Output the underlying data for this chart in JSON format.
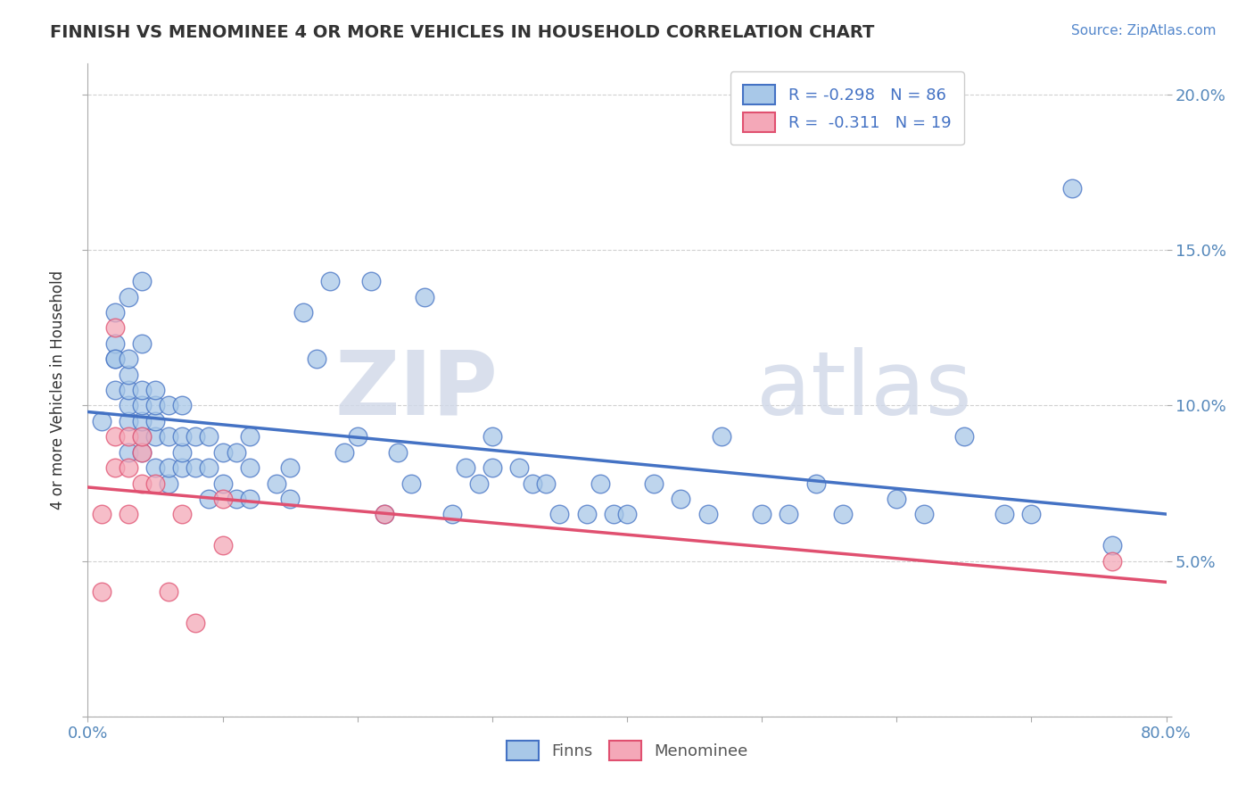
{
  "title": "FINNISH VS MENOMINEE 4 OR MORE VEHICLES IN HOUSEHOLD CORRELATION CHART",
  "source": "Source: ZipAtlas.com",
  "ylabel": "4 or more Vehicles in Household",
  "xlim": [
    0.0,
    0.8
  ],
  "ylim": [
    0.0,
    0.21
  ],
  "x_ticks": [
    0.0,
    0.1,
    0.2,
    0.3,
    0.4,
    0.5,
    0.6,
    0.7,
    0.8
  ],
  "y_ticks": [
    0.0,
    0.05,
    0.1,
    0.15,
    0.2
  ],
  "y_tick_labels_right": [
    "",
    "5.0%",
    "10.0%",
    "15.0%",
    "20.0%"
  ],
  "legend_label1": "R = -0.298   N = 86",
  "legend_label2": "R =  -0.311   N = 19",
  "legend_label_bottom1": "Finns",
  "legend_label_bottom2": "Menominee",
  "color_finns": "#a8c8e8",
  "color_menominee": "#f4a8b8",
  "color_line_finns": "#4472c4",
  "color_line_menominee": "#e05070",
  "watermark_zip": "ZIP",
  "watermark_atlas": "atlas",
  "finns_x": [
    0.01,
    0.02,
    0.02,
    0.02,
    0.02,
    0.02,
    0.03,
    0.03,
    0.03,
    0.03,
    0.03,
    0.03,
    0.03,
    0.04,
    0.04,
    0.04,
    0.04,
    0.04,
    0.04,
    0.04,
    0.05,
    0.05,
    0.05,
    0.05,
    0.05,
    0.06,
    0.06,
    0.06,
    0.06,
    0.07,
    0.07,
    0.07,
    0.07,
    0.08,
    0.08,
    0.09,
    0.09,
    0.09,
    0.1,
    0.1,
    0.11,
    0.11,
    0.12,
    0.12,
    0.12,
    0.14,
    0.15,
    0.15,
    0.16,
    0.17,
    0.18,
    0.19,
    0.2,
    0.21,
    0.22,
    0.23,
    0.24,
    0.25,
    0.27,
    0.28,
    0.29,
    0.3,
    0.3,
    0.32,
    0.33,
    0.34,
    0.35,
    0.37,
    0.38,
    0.39,
    0.4,
    0.42,
    0.44,
    0.46,
    0.47,
    0.5,
    0.52,
    0.54,
    0.56,
    0.6,
    0.62,
    0.65,
    0.68,
    0.7,
    0.73,
    0.76
  ],
  "finns_y": [
    0.095,
    0.105,
    0.115,
    0.12,
    0.115,
    0.13,
    0.085,
    0.095,
    0.1,
    0.105,
    0.11,
    0.115,
    0.135,
    0.085,
    0.09,
    0.095,
    0.1,
    0.105,
    0.12,
    0.14,
    0.08,
    0.09,
    0.095,
    0.1,
    0.105,
    0.075,
    0.08,
    0.09,
    0.1,
    0.08,
    0.085,
    0.09,
    0.1,
    0.08,
    0.09,
    0.07,
    0.08,
    0.09,
    0.075,
    0.085,
    0.07,
    0.085,
    0.07,
    0.08,
    0.09,
    0.075,
    0.07,
    0.08,
    0.13,
    0.115,
    0.14,
    0.085,
    0.09,
    0.14,
    0.065,
    0.085,
    0.075,
    0.135,
    0.065,
    0.08,
    0.075,
    0.08,
    0.09,
    0.08,
    0.075,
    0.075,
    0.065,
    0.065,
    0.075,
    0.065,
    0.065,
    0.075,
    0.07,
    0.065,
    0.09,
    0.065,
    0.065,
    0.075,
    0.065,
    0.07,
    0.065,
    0.09,
    0.065,
    0.065,
    0.17,
    0.055
  ],
  "menominee_x": [
    0.01,
    0.01,
    0.02,
    0.02,
    0.02,
    0.03,
    0.03,
    0.03,
    0.04,
    0.04,
    0.04,
    0.05,
    0.06,
    0.07,
    0.08,
    0.1,
    0.1,
    0.22,
    0.76
  ],
  "menominee_y": [
    0.04,
    0.065,
    0.08,
    0.09,
    0.125,
    0.065,
    0.08,
    0.09,
    0.075,
    0.085,
    0.09,
    0.075,
    0.04,
    0.065,
    0.03,
    0.055,
    0.07,
    0.065,
    0.05
  ]
}
